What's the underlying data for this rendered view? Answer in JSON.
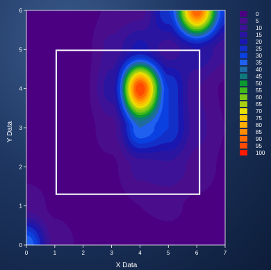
{
  "chart_data": {
    "type": "heatmap",
    "title": "",
    "xlabel": "X Data",
    "ylabel": "Y Data",
    "xlim": [
      0,
      7
    ],
    "ylim": [
      0,
      6
    ],
    "x_ticks": [
      "0",
      "1",
      "2",
      "3",
      "4",
      "5",
      "6",
      "7"
    ],
    "y_ticks": [
      "0",
      "1",
      "2",
      "3",
      "4",
      "5",
      "6"
    ],
    "x": [
      0,
      1,
      2,
      3,
      4,
      5,
      6,
      7
    ],
    "y": [
      0,
      1,
      2,
      3,
      4,
      5,
      6
    ],
    "z": [
      [
        40,
        8,
        4,
        3,
        3,
        3,
        3,
        3
      ],
      [
        8,
        4,
        3,
        3,
        5,
        6,
        4,
        3
      ],
      [
        3,
        3,
        3,
        4,
        12,
        14,
        8,
        4
      ],
      [
        3,
        3,
        3,
        8,
        40,
        30,
        12,
        5
      ],
      [
        3,
        3,
        3,
        18,
        100,
        30,
        10,
        4
      ],
      [
        3,
        3,
        3,
        12,
        22,
        12,
        20,
        12
      ],
      [
        3,
        3,
        3,
        6,
        8,
        30,
        95,
        30
      ]
    ],
    "legend": {
      "position": "right",
      "levels": [
        "0",
        "5",
        "10",
        "15",
        "20",
        "25",
        "30",
        "35",
        "40",
        "45",
        "50",
        "55",
        "60",
        "65",
        "70",
        "75",
        "80",
        "85",
        "90",
        "95",
        "100"
      ],
      "colors": [
        "#4B0082",
        "#4A0E8C",
        "#3E1296",
        "#2A15A0",
        "#1A17B0",
        "#1230C8",
        "#0A3FE0",
        "#2060F0",
        "#1F6AA0",
        "#0F7A7A",
        "#0A9A30",
        "#3FB81C",
        "#7CC814",
        "#A8D010",
        "#E8E000",
        "#F5C800",
        "#FFAE00",
        "#FF8C00",
        "#FF6A00",
        "#FF4A00",
        "#FF1A00"
      ]
    },
    "annotations": [
      {
        "type": "rectangle",
        "x0": 1.05,
        "y0": 1.3,
        "x1": 6.1,
        "y1": 4.98,
        "color": "#FFFFFF"
      }
    ],
    "grid": false
  }
}
